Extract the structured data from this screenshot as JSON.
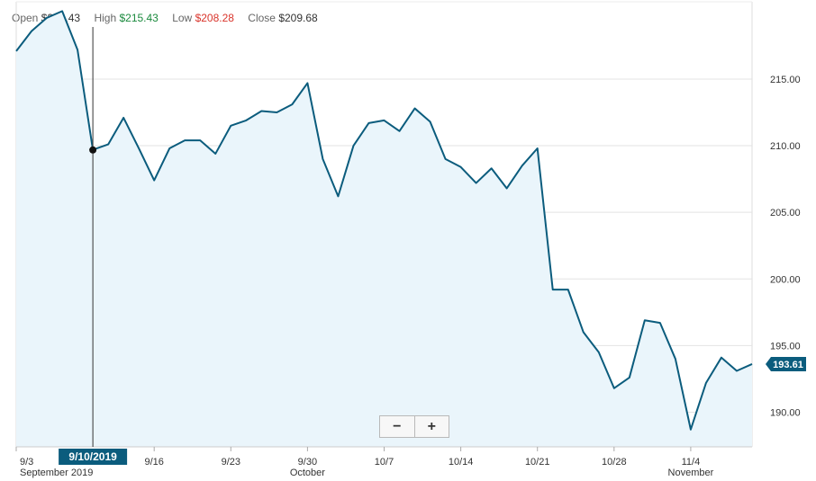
{
  "ohlc": {
    "open_label": "Open",
    "open": "$215.43",
    "high_label": "High",
    "high": "$215.43",
    "low_label": "Low",
    "low": "$208.28",
    "close_label": "Close",
    "close": "$209.68"
  },
  "colors": {
    "line": "#0b5c7d",
    "fill": "#eaf5fb",
    "high": "#1b8a3e",
    "low": "#d9342b",
    "badge": "#0b5c7d"
  },
  "zoom": {
    "minus": "−",
    "plus": "+"
  },
  "chart_data": {
    "type": "area",
    "title": "",
    "xlabel": "",
    "ylabel": "",
    "ylim": [
      187.4,
      220.8
    ],
    "grid": true,
    "y_ticks": [
      "215.00",
      "210.00",
      "205.00",
      "200.00",
      "195.00",
      "190.00"
    ],
    "x_ticks": [
      {
        "label": "9/3",
        "sub": "September 2019",
        "date": "2019-09-03"
      },
      {
        "label": "9/16",
        "sub": "",
        "date": "2019-09-16"
      },
      {
        "label": "9/23",
        "sub": "",
        "date": "2019-09-23"
      },
      {
        "label": "9/30",
        "sub": "October",
        "date": "2019-09-30"
      },
      {
        "label": "10/7",
        "sub": "",
        "date": "2019-10-07"
      },
      {
        "label": "10/14",
        "sub": "",
        "date": "2019-10-14"
      },
      {
        "label": "10/21",
        "sub": "",
        "date": "2019-10-21"
      },
      {
        "label": "10/28",
        "sub": "",
        "date": "2019-10-28"
      },
      {
        "label": "11/4",
        "sub": "November",
        "date": "2019-11-04"
      }
    ],
    "last_value_label": "193.61",
    "crosshair": {
      "label": "9/10/2019",
      "date": "2019-09-10",
      "value": 209.68
    },
    "series": [
      {
        "x": [
          "2019-09-03",
          "2019-09-04",
          "2019-09-05",
          "2019-09-06",
          "2019-09-09",
          "2019-09-10",
          "2019-09-11",
          "2019-09-12",
          "2019-09-13",
          "2019-09-16",
          "2019-09-17",
          "2019-09-18",
          "2019-09-19",
          "2019-09-20",
          "2019-09-23",
          "2019-09-24",
          "2019-09-25",
          "2019-09-26",
          "2019-09-27",
          "2019-09-30",
          "2019-10-01",
          "2019-10-02",
          "2019-10-03",
          "2019-10-04",
          "2019-10-07",
          "2019-10-08",
          "2019-10-09",
          "2019-10-10",
          "2019-10-11",
          "2019-10-14",
          "2019-10-15",
          "2019-10-16",
          "2019-10-17",
          "2019-10-18",
          "2019-10-21",
          "2019-10-22",
          "2019-10-23",
          "2019-10-24",
          "2019-10-25",
          "2019-10-28",
          "2019-10-29",
          "2019-10-30",
          "2019-10-31",
          "2019-11-01",
          "2019-11-04",
          "2019-11-05",
          "2019-11-06",
          "2019-11-07",
          "2019-11-08"
        ],
        "values": [
          217.1,
          218.6,
          219.6,
          220.1,
          217.2,
          209.7,
          210.1,
          212.1,
          209.8,
          207.4,
          209.8,
          210.4,
          210.4,
          209.4,
          211.5,
          211.9,
          212.6,
          212.5,
          213.1,
          214.7,
          209.0,
          206.2,
          210.0,
          211.7,
          211.9,
          211.1,
          212.8,
          211.8,
          209.0,
          208.4,
          207.2,
          208.3,
          206.8,
          208.5,
          209.8,
          199.2,
          199.2,
          196.0,
          194.5,
          191.8,
          192.6,
          196.9,
          196.7,
          194.0,
          188.7,
          192.2,
          194.1,
          193.1,
          193.61
        ]
      }
    ]
  }
}
